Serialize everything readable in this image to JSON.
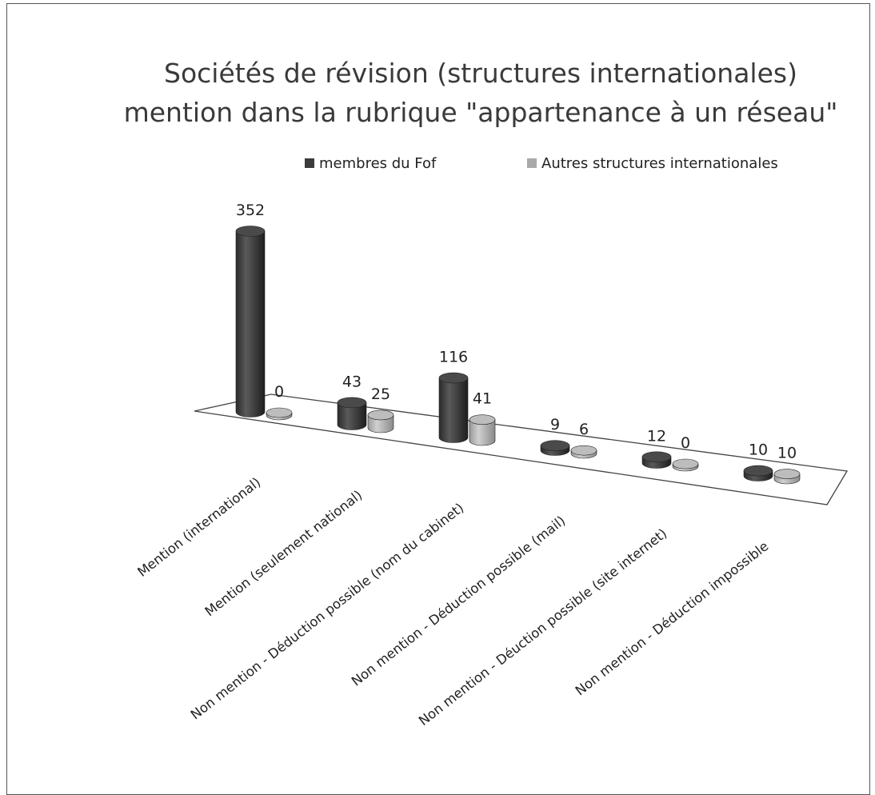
{
  "chart_data": {
    "type": "bar",
    "title": [
      "Sociétés de révision (structures internationales)",
      "mention dans la rubrique \"appartenance à un réseau\""
    ],
    "categories": [
      "Mention (international)",
      "Mention (seulement national)",
      "Non mention - Déduction possible (nom du cabinet)",
      "Non mention - Déduction possible (mail)",
      "Non mention - Déuction possible (site internet)",
      "Non mention - Déduction impossible"
    ],
    "series": [
      {
        "name": "membres du Fof",
        "values": [
          352,
          43,
          116,
          9,
          12,
          10
        ],
        "color": "#3c3c3c"
      },
      {
        "name": "Autres structures internationales",
        "values": [
          0,
          25,
          41,
          6,
          0,
          10
        ],
        "color": "#a9a9a9"
      }
    ],
    "legend_position": "top",
    "grid": false,
    "style": "3d-cylinder"
  }
}
